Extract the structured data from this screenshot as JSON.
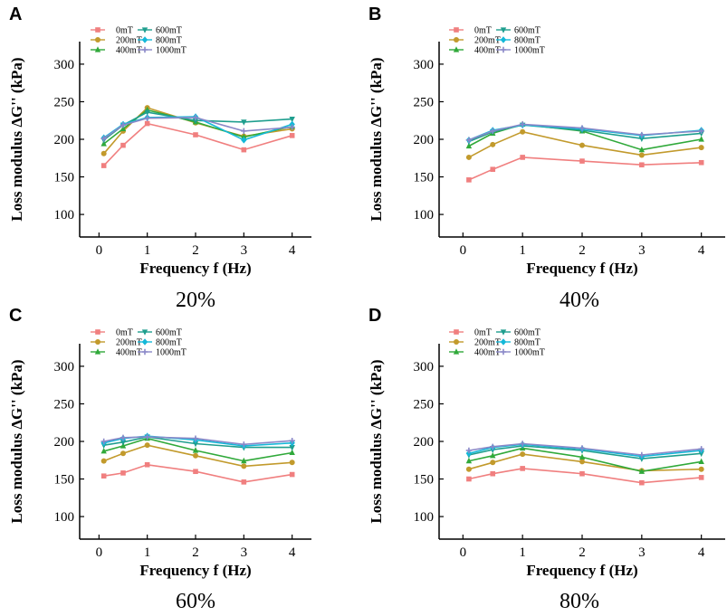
{
  "colors": {
    "0mT": "#f07f7f",
    "200mT": "#c29a2c",
    "400mT": "#30a93a",
    "600mT": "#1f9e8e",
    "800mT": "#14b8d8",
    "1000mT": "#8a88c8"
  },
  "chart_data": [
    {
      "type": "line",
      "panel": "A",
      "caption": "20%",
      "xlabel": "Frequency f (Hz)",
      "ylabel": "Loss modulus ΔG'' (kPa)",
      "x": [
        0.1,
        0.5,
        1,
        2,
        3,
        4
      ],
      "xticks": [
        "0",
        "1",
        "2",
        "3",
        "4"
      ],
      "yticks": [
        "100",
        "150",
        "200",
        "250",
        "300"
      ],
      "xlim": [
        -0.4,
        4.4
      ],
      "ylim": [
        70,
        330
      ],
      "legend_position": "top-left",
      "series": [
        {
          "name": "0mT",
          "marker": "square",
          "values": [
            165,
            192,
            221,
            206,
            186,
            205
          ]
        },
        {
          "name": "200mT",
          "marker": "circle",
          "values": [
            181,
            211,
            242,
            222,
            204,
            214
          ]
        },
        {
          "name": "400mT",
          "marker": "triangle-up",
          "values": [
            194,
            214,
            239,
            223,
            203,
            217
          ]
        },
        {
          "name": "600mT",
          "marker": "triangle-down",
          "values": [
            199,
            219,
            236,
            225,
            223,
            227
          ]
        },
        {
          "name": "800mT",
          "marker": "diamond",
          "values": [
            202,
            220,
            229,
            230,
            199,
            220
          ]
        },
        {
          "name": "1000mT",
          "marker": "plus",
          "values": [
            201,
            219,
            228,
            229,
            211,
            216
          ]
        }
      ]
    },
    {
      "type": "line",
      "panel": "B",
      "caption": "40%",
      "xlabel": "Frequency f (Hz)",
      "ylabel": "Loss modulus ΔG'' (kPa)",
      "x": [
        0.1,
        0.5,
        1,
        2,
        3,
        4
      ],
      "xticks": [
        "0",
        "1",
        "2",
        "3",
        "4"
      ],
      "yticks": [
        "100",
        "150",
        "200",
        "250",
        "300"
      ],
      "xlim": [
        -0.4,
        4.4
      ],
      "ylim": [
        70,
        330
      ],
      "legend_position": "top-left",
      "series": [
        {
          "name": "0mT",
          "marker": "square",
          "values": [
            146,
            160,
            176,
            171,
            166,
            169
          ]
        },
        {
          "name": "200mT",
          "marker": "circle",
          "values": [
            176,
            193,
            210,
            192,
            179,
            189
          ]
        },
        {
          "name": "400mT",
          "marker": "triangle-up",
          "values": [
            191,
            208,
            220,
            211,
            186,
            200
          ]
        },
        {
          "name": "600mT",
          "marker": "triangle-down",
          "values": [
            197,
            210,
            219,
            212,
            201,
            208
          ]
        },
        {
          "name": "800mT",
          "marker": "diamond",
          "values": [
            199,
            212,
            219,
            214,
            205,
            212
          ]
        },
        {
          "name": "1000mT",
          "marker": "plus",
          "values": [
            199,
            211,
            220,
            215,
            206,
            211
          ]
        }
      ]
    },
    {
      "type": "line",
      "panel": "C",
      "caption": "60%",
      "xlabel": "Frequency f (Hz)",
      "ylabel": "Loss modulus ΔG'' (kPa)",
      "x": [
        0.1,
        0.5,
        1,
        2,
        3,
        4
      ],
      "xticks": [
        "0",
        "1",
        "2",
        "3",
        "4"
      ],
      "yticks": [
        "100",
        "150",
        "200",
        "250",
        "300"
      ],
      "xlim": [
        -0.4,
        4.4
      ],
      "ylim": [
        70,
        330
      ],
      "legend_position": "top-left",
      "series": [
        {
          "name": "0mT",
          "marker": "square",
          "values": [
            154,
            158,
            169,
            160,
            146,
            156
          ]
        },
        {
          "name": "200mT",
          "marker": "circle",
          "values": [
            174,
            184,
            195,
            181,
            167,
            172
          ]
        },
        {
          "name": "400mT",
          "marker": "triangle-up",
          "values": [
            187,
            194,
            204,
            188,
            174,
            185
          ]
        },
        {
          "name": "600mT",
          "marker": "triangle-down",
          "values": [
            195,
            199,
            206,
            197,
            192,
            192
          ]
        },
        {
          "name": "800mT",
          "marker": "diamond",
          "values": [
            198,
            204,
            207,
            202,
            194,
            198
          ]
        },
        {
          "name": "1000mT",
          "marker": "plus",
          "values": [
            200,
            205,
            206,
            204,
            196,
            201
          ]
        }
      ]
    },
    {
      "type": "line",
      "panel": "D",
      "caption": "80%",
      "xlabel": "Frequency f (Hz)",
      "ylabel": "Loss modulus ΔG'' (kPa)",
      "x": [
        0.1,
        0.5,
        1,
        2,
        3,
        4
      ],
      "xticks": [
        "0",
        "1",
        "2",
        "3",
        "4"
      ],
      "yticks": [
        "100",
        "150",
        "200",
        "250",
        "300"
      ],
      "xlim": [
        -0.4,
        4.4
      ],
      "ylim": [
        70,
        330
      ],
      "legend_position": "top-left",
      "series": [
        {
          "name": "0mT",
          "marker": "square",
          "values": [
            150,
            157,
            164,
            157,
            145,
            152
          ]
        },
        {
          "name": "200mT",
          "marker": "circle",
          "values": [
            163,
            172,
            183,
            173,
            161,
            163
          ]
        },
        {
          "name": "400mT",
          "marker": "triangle-up",
          "values": [
            174,
            181,
            191,
            179,
            160,
            173
          ]
        },
        {
          "name": "600mT",
          "marker": "triangle-down",
          "values": [
            182,
            189,
            194,
            188,
            177,
            184
          ]
        },
        {
          "name": "800mT",
          "marker": "diamond",
          "values": [
            184,
            192,
            196,
            190,
            180,
            188
          ]
        },
        {
          "name": "1000mT",
          "marker": "plus",
          "values": [
            188,
            193,
            197,
            191,
            182,
            190
          ]
        }
      ]
    }
  ]
}
